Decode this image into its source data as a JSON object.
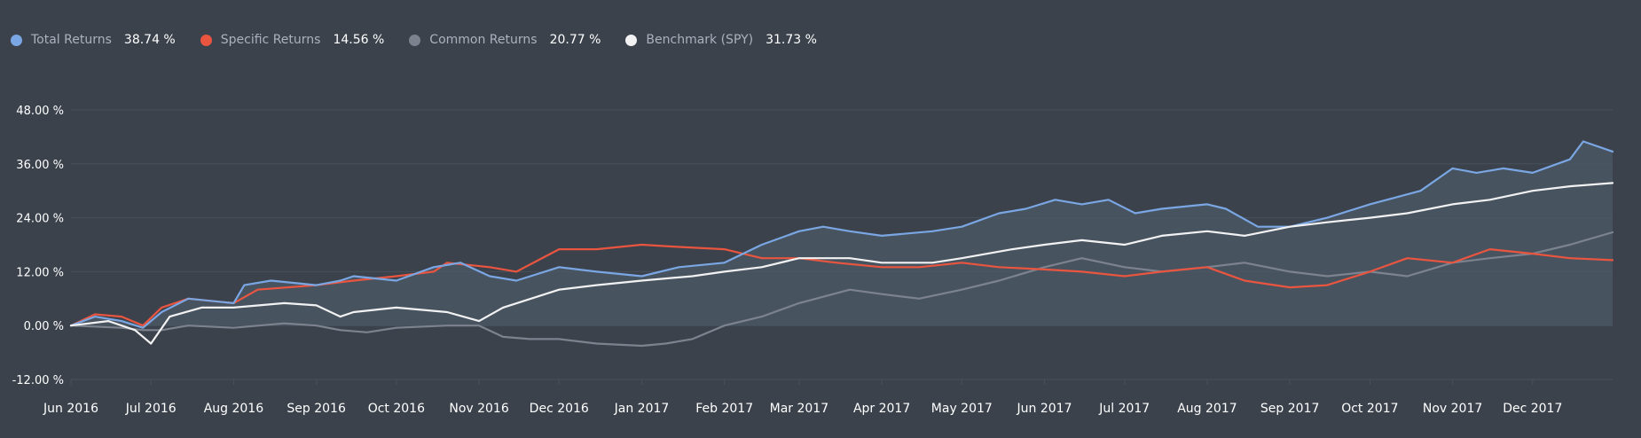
{
  "legend": [
    {
      "name": "Total Returns",
      "value": "38.74 %",
      "color": "#7aa7e3"
    },
    {
      "name": "Specific Returns",
      "value": "14.56 %",
      "color": "#ea5540"
    },
    {
      "name": "Common Returns",
      "value": "20.77 %",
      "color": "#7c838f"
    },
    {
      "name": "Benchmark (SPY)",
      "value": "31.73 %",
      "color": "#f2f2f2"
    }
  ],
  "colors": {
    "background": "#3b424c",
    "grid": "#48505b",
    "area_fill": "#4a5563"
  },
  "chart_data": {
    "type": "line",
    "title": "",
    "xlabel": "",
    "ylabel": "",
    "x_range": [
      "2016-06-01",
      "2017-12-31"
    ],
    "ylim": [
      -12,
      48
    ],
    "y_ticks": [
      48,
      36,
      24,
      12,
      0,
      -12
    ],
    "y_tick_labels": [
      "48.00 %",
      "36.00 %",
      "24.00 %",
      "12.00 %",
      "0.00 %",
      "-12.00 %"
    ],
    "x_ticks": [
      "2016-06-01",
      "2016-07-01",
      "2016-08-01",
      "2016-09-01",
      "2016-10-01",
      "2016-11-01",
      "2016-12-01",
      "2017-01-01",
      "2017-02-01",
      "2017-03-01",
      "2017-04-01",
      "2017-05-01",
      "2017-06-01",
      "2017-07-01",
      "2017-08-01",
      "2017-09-01",
      "2017-10-01",
      "2017-11-01",
      "2017-12-01"
    ],
    "x_tick_labels": [
      "Jun 2016",
      "Jul 2016",
      "Aug 2016",
      "Sep 2016",
      "Oct 2016",
      "Nov 2016",
      "Dec 2016",
      "Jan 2017",
      "Feb 2017",
      "Mar 2017",
      "Apr 2017",
      "May 2017",
      "Jun 2017",
      "Jul 2017",
      "Aug 2017",
      "Sep 2017",
      "Oct 2017",
      "Nov 2017",
      "Dec 2017"
    ],
    "grid": true,
    "legend_position": "top-left",
    "series": [
      {
        "name": "Total Returns",
        "color": "#7aa7e3",
        "filled": true,
        "x": [
          "2016-06-01",
          "2016-06-10",
          "2016-06-20",
          "2016-06-28",
          "2016-07-05",
          "2016-07-15",
          "2016-08-01",
          "2016-08-05",
          "2016-08-15",
          "2016-09-01",
          "2016-09-10",
          "2016-09-15",
          "2016-10-01",
          "2016-10-15",
          "2016-10-25",
          "2016-11-05",
          "2016-11-15",
          "2016-12-01",
          "2016-12-15",
          "2017-01-01",
          "2017-01-15",
          "2017-02-01",
          "2017-02-15",
          "2017-03-01",
          "2017-03-10",
          "2017-03-20",
          "2017-04-01",
          "2017-04-20",
          "2017-05-01",
          "2017-05-15",
          "2017-05-25",
          "2017-06-05",
          "2017-06-15",
          "2017-06-25",
          "2017-07-05",
          "2017-07-15",
          "2017-08-01",
          "2017-08-08",
          "2017-08-20",
          "2017-09-01",
          "2017-09-15",
          "2017-10-01",
          "2017-10-20",
          "2017-11-01",
          "2017-11-10",
          "2017-11-20",
          "2017-12-01",
          "2017-12-15",
          "2017-12-20",
          "2017-12-31"
        ],
        "y": [
          0.0,
          2.0,
          1.0,
          -0.5,
          3.0,
          6.0,
          5.0,
          9.0,
          10.0,
          9.0,
          10.0,
          11.0,
          10.0,
          13.0,
          14.0,
          11.0,
          10.0,
          13.0,
          12.0,
          11.0,
          13.0,
          14.0,
          18.0,
          21.0,
          22.0,
          21.0,
          20.0,
          21.0,
          22.0,
          25.0,
          26.0,
          28.0,
          27.0,
          28.0,
          25.0,
          26.0,
          27.0,
          26.0,
          22.0,
          22.0,
          24.0,
          27.0,
          30.0,
          35.0,
          34.0,
          35.0,
          34.0,
          37.0,
          41.0,
          38.74
        ]
      },
      {
        "name": "Specific Returns",
        "color": "#ea5540",
        "filled": false,
        "x": [
          "2016-06-01",
          "2016-06-10",
          "2016-06-20",
          "2016-06-28",
          "2016-07-05",
          "2016-07-15",
          "2016-08-01",
          "2016-08-10",
          "2016-09-01",
          "2016-09-15",
          "2016-10-01",
          "2016-10-15",
          "2016-10-20",
          "2016-11-05",
          "2016-11-15",
          "2016-12-01",
          "2016-12-15",
          "2017-01-01",
          "2017-01-15",
          "2017-02-01",
          "2017-02-15",
          "2017-03-01",
          "2017-03-15",
          "2017-04-01",
          "2017-04-15",
          "2017-05-01",
          "2017-05-15",
          "2017-06-01",
          "2017-06-15",
          "2017-07-01",
          "2017-07-15",
          "2017-08-01",
          "2017-08-15",
          "2017-09-01",
          "2017-09-15",
          "2017-10-01",
          "2017-10-15",
          "2017-11-01",
          "2017-11-15",
          "2017-12-01",
          "2017-12-15",
          "2017-12-31"
        ],
        "y": [
          0.0,
          2.5,
          2.0,
          0.0,
          4.0,
          6.0,
          5.0,
          8.0,
          9.0,
          10.0,
          11.0,
          12.0,
          14.0,
          13.0,
          12.0,
          17.0,
          17.0,
          18.0,
          17.5,
          17.0,
          15.0,
          15.0,
          14.0,
          13.0,
          13.0,
          14.0,
          13.0,
          12.5,
          12.0,
          11.0,
          12.0,
          13.0,
          10.0,
          8.5,
          9.0,
          12.0,
          15.0,
          14.0,
          17.0,
          16.0,
          15.0,
          14.56
        ]
      },
      {
        "name": "Common Returns",
        "color": "#7c838f",
        "filled": false,
        "x": [
          "2016-06-01",
          "2016-06-20",
          "2016-06-28",
          "2016-07-05",
          "2016-07-15",
          "2016-08-01",
          "2016-08-20",
          "2016-09-01",
          "2016-09-10",
          "2016-09-20",
          "2016-10-01",
          "2016-10-20",
          "2016-11-01",
          "2016-11-10",
          "2016-11-20",
          "2016-12-01",
          "2016-12-15",
          "2017-01-01",
          "2017-01-10",
          "2017-01-20",
          "2017-02-01",
          "2017-02-15",
          "2017-03-01",
          "2017-03-20",
          "2017-04-01",
          "2017-04-15",
          "2017-05-01",
          "2017-05-15",
          "2017-06-01",
          "2017-06-15",
          "2017-07-01",
          "2017-07-15",
          "2017-08-01",
          "2017-08-15",
          "2017-09-01",
          "2017-09-15",
          "2017-10-01",
          "2017-10-15",
          "2017-11-01",
          "2017-11-15",
          "2017-12-01",
          "2017-12-15",
          "2017-12-31"
        ],
        "y": [
          0.0,
          -0.5,
          -1.0,
          -1.0,
          0.0,
          -0.5,
          0.5,
          0.0,
          -1.0,
          -1.5,
          -0.5,
          0.0,
          0.0,
          -2.5,
          -3.0,
          -3.0,
          -4.0,
          -4.5,
          -4.0,
          -3.0,
          0.0,
          2.0,
          5.0,
          8.0,
          7.0,
          6.0,
          8.0,
          10.0,
          13.0,
          15.0,
          13.0,
          12.0,
          13.0,
          14.0,
          12.0,
          11.0,
          12.0,
          11.0,
          14.0,
          15.0,
          16.0,
          18.0,
          20.77
        ]
      },
      {
        "name": "Benchmark (SPY)",
        "color": "#f2f2f2",
        "filled": false,
        "x": [
          "2016-06-01",
          "2016-06-15",
          "2016-06-25",
          "2016-07-01",
          "2016-07-08",
          "2016-07-20",
          "2016-08-01",
          "2016-08-20",
          "2016-09-01",
          "2016-09-10",
          "2016-09-15",
          "2016-10-01",
          "2016-10-20",
          "2016-11-01",
          "2016-11-10",
          "2016-12-01",
          "2016-12-15",
          "2017-01-01",
          "2017-01-20",
          "2017-02-01",
          "2017-02-15",
          "2017-03-01",
          "2017-03-20",
          "2017-04-01",
          "2017-04-20",
          "2017-05-01",
          "2017-05-20",
          "2017-06-01",
          "2017-06-15",
          "2017-07-01",
          "2017-07-15",
          "2017-08-01",
          "2017-08-15",
          "2017-09-01",
          "2017-09-15",
          "2017-10-01",
          "2017-10-15",
          "2017-11-01",
          "2017-11-15",
          "2017-12-01",
          "2017-12-15",
          "2017-12-31"
        ],
        "y": [
          0.0,
          1.0,
          -1.0,
          -4.0,
          2.0,
          4.0,
          4.0,
          5.0,
          4.5,
          2.0,
          3.0,
          4.0,
          3.0,
          1.0,
          4.0,
          8.0,
          9.0,
          10.0,
          11.0,
          12.0,
          13.0,
          15.0,
          15.0,
          14.0,
          14.0,
          15.0,
          17.0,
          18.0,
          19.0,
          18.0,
          20.0,
          21.0,
          20.0,
          22.0,
          23.0,
          24.0,
          25.0,
          27.0,
          28.0,
          30.0,
          31.0,
          31.73
        ]
      }
    ]
  }
}
